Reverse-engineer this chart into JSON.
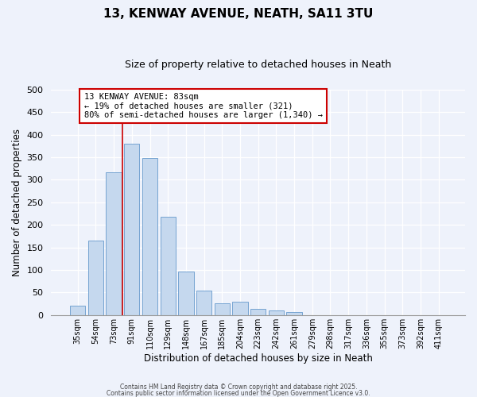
{
  "title": "13, KENWAY AVENUE, NEATH, SA11 3TU",
  "subtitle": "Size of property relative to detached houses in Neath",
  "xlabel": "Distribution of detached houses by size in Neath",
  "ylabel": "Number of detached properties",
  "bar_labels": [
    "35sqm",
    "54sqm",
    "73sqm",
    "91sqm",
    "110sqm",
    "129sqm",
    "148sqm",
    "167sqm",
    "185sqm",
    "204sqm",
    "223sqm",
    "242sqm",
    "261sqm",
    "279sqm",
    "298sqm",
    "317sqm",
    "336sqm",
    "355sqm",
    "373sqm",
    "392sqm",
    "411sqm"
  ],
  "bar_values": [
    20,
    165,
    317,
    380,
    348,
    218,
    96,
    54,
    26,
    30,
    14,
    10,
    6,
    0,
    0,
    0,
    0,
    0,
    0,
    0,
    0
  ],
  "bar_color": "#c5d8ee",
  "bar_edge_color": "#6699cc",
  "vline_color": "#cc0000",
  "annotation_title": "13 KENWAY AVENUE: 83sqm",
  "annotation_line1": "← 19% of detached houses are smaller (321)",
  "annotation_line2": "80% of semi-detached houses are larger (1,340) →",
  "annotation_box_color": "#ffffff",
  "annotation_box_edge": "#cc0000",
  "ylim": [
    0,
    500
  ],
  "yticks": [
    0,
    50,
    100,
    150,
    200,
    250,
    300,
    350,
    400,
    450,
    500
  ],
  "footer1": "Contains HM Land Registry data © Crown copyright and database right 2025.",
  "footer2": "Contains public sector information licensed under the Open Government Licence v3.0.",
  "background_color": "#eef2fb",
  "grid_color": "#ffffff",
  "title_fontsize": 11,
  "subtitle_fontsize": 9
}
